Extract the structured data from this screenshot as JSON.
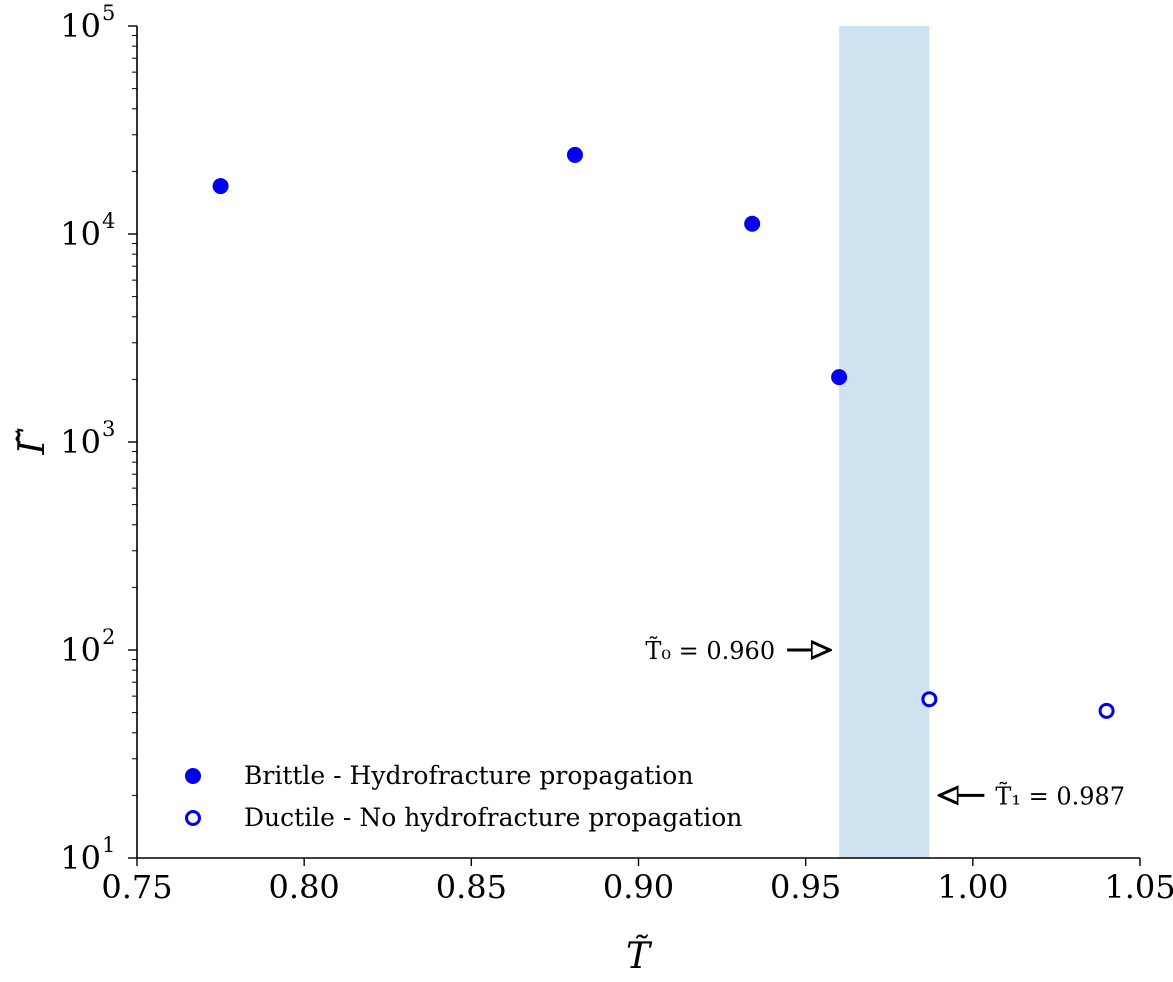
{
  "chart_data": {
    "type": "scatter",
    "title": "",
    "xlabel": "T̃",
    "ylabel": "Γ̃",
    "xlim": [
      0.75,
      1.05
    ],
    "ylim": [
      10,
      100000
    ],
    "yscale": "log",
    "grid": false,
    "x_ticks": [
      "0.75",
      "0.80",
      "0.85",
      "0.90",
      "0.95",
      "1.00",
      "1.05"
    ],
    "y_ticks": [
      {
        "base": "10",
        "exp": "1",
        "value": 10
      },
      {
        "base": "10",
        "exp": "2",
        "value": 100
      },
      {
        "base": "10",
        "exp": "3",
        "value": 1000
      },
      {
        "base": "10",
        "exp": "4",
        "value": 10000
      },
      {
        "base": "10",
        "exp": "5",
        "value": 100000
      }
    ],
    "shaded_region": {
      "x_start": 0.96,
      "x_end": 0.987,
      "color": "#cfe2f0"
    },
    "legend_position": "lower-left",
    "series": [
      {
        "name": "Brittle - Hydrofracture propagation",
        "marker": "filled-circle",
        "color": "#0000ee",
        "points": [
          {
            "x": 0.775,
            "y": 17000
          },
          {
            "x": 0.881,
            "y": 24000
          },
          {
            "x": 0.934,
            "y": 11200
          },
          {
            "x": 0.96,
            "y": 2050
          }
        ]
      },
      {
        "name": "Ductile - No hydrofracture propagation",
        "marker": "open-circle",
        "color": "#0000ee",
        "points": [
          {
            "x": 0.987,
            "y": 58
          },
          {
            "x": 1.04,
            "y": 51
          }
        ]
      }
    ],
    "annotations": [
      {
        "text": "T̃₀ = 0.960",
        "x": 0.96,
        "y": 100,
        "arrow": "right"
      },
      {
        "text": "T̃₁ = 0.987",
        "x": 0.987,
        "y": 20,
        "arrow": "left"
      }
    ]
  }
}
